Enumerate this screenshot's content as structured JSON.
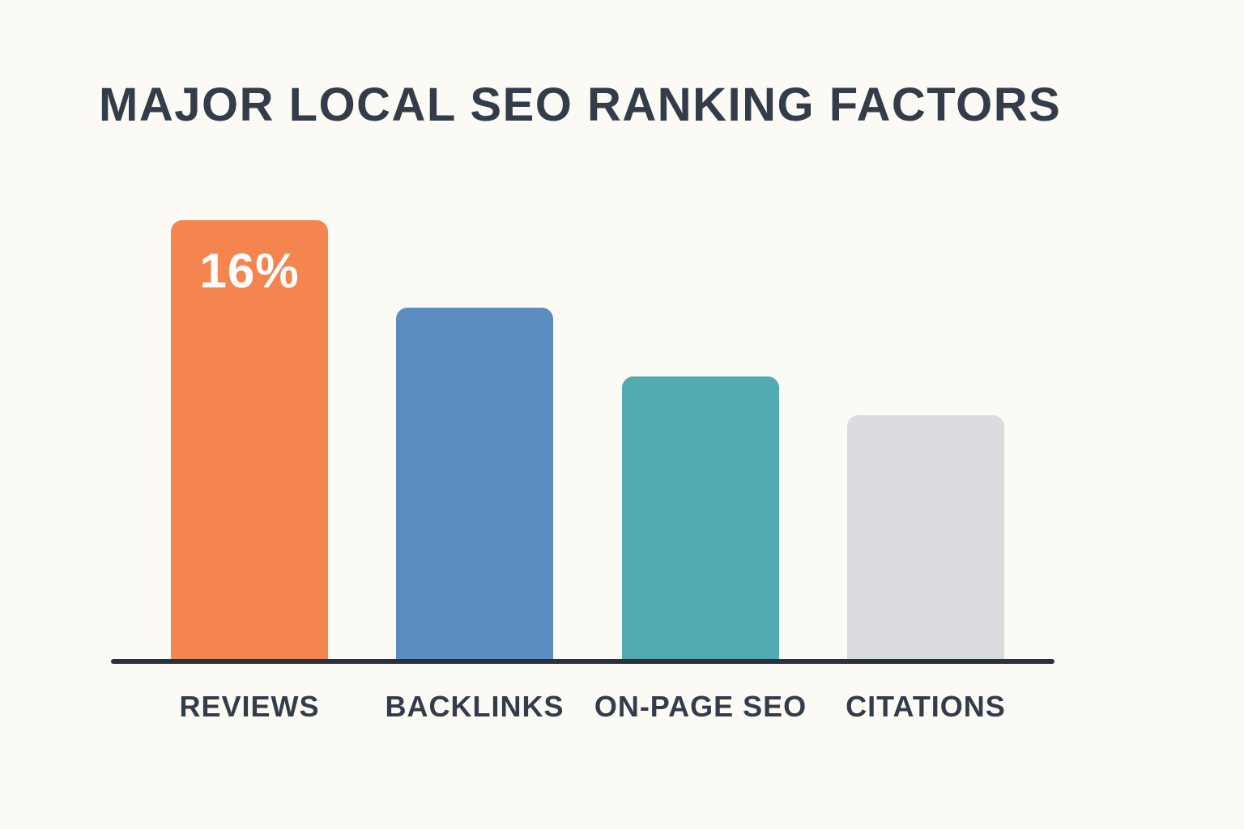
{
  "title": "MAJOR LOCAL SEO RANKING FACTORS",
  "colors": {
    "background": "#FBFAF5",
    "title_text": "#333D49",
    "category_label_text": "#333D49",
    "axis_line": "#28313C",
    "data_label_text": "#FFFFFF",
    "bar_orange": "#F5854F",
    "bar_blue": "#5B8DC0",
    "bar_teal": "#52ABB1",
    "bar_gray": "#D9DBDE"
  },
  "chart_data": {
    "type": "bar",
    "title": "MAJOR LOCAL SEO RANKING FACTORS",
    "categories": [
      "REVIEWS",
      "BACKLINKS",
      "ON-PAGE SEO",
      "CITATIONS"
    ],
    "values": [
      16,
      12.8,
      10.3,
      8.9
    ],
    "data_labels": [
      "16%",
      "",
      "",
      ""
    ],
    "bar_colors": [
      "#F5854F",
      "#5B8DC0",
      "#52ABB1",
      "#D9DBDE"
    ],
    "unit": "%",
    "xlabel": "",
    "ylabel": "",
    "ylim": [
      0,
      16
    ],
    "grid": false,
    "legend": false,
    "axis_labels_visible": true,
    "y_axis_ticks_visible": false
  }
}
